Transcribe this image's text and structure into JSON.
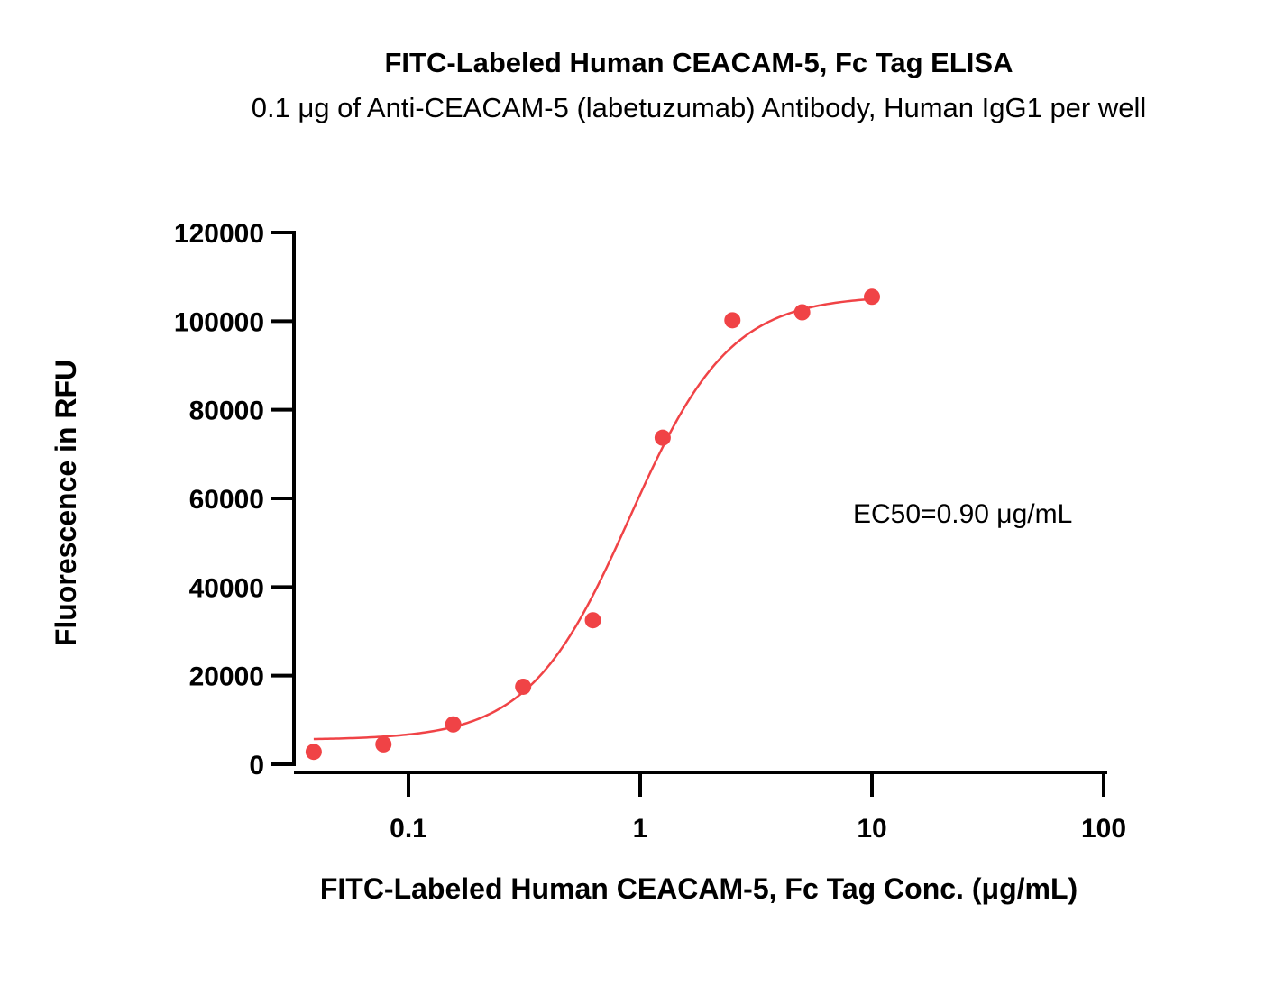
{
  "chart_data": {
    "type": "scatter",
    "title": "FITC-Labeled Human CEACAM-5, Fc Tag ELISA",
    "subtitle": "0.1 μg of Anti-CEACAM-5 (labetuzumab) Antibody, Human IgG1 per well",
    "xlabel": "FITC-Labeled Human CEACAM-5, Fc Tag Conc. (μg/mL)",
    "ylabel": "Fluorescence in RFU",
    "xscale": "log",
    "xlim": [
      0.03,
      100
    ],
    "ylim": [
      0,
      120000
    ],
    "x_ticks": [
      0.1,
      1,
      10,
      100
    ],
    "x_tick_labels": [
      "0.1",
      "1",
      "10",
      "100"
    ],
    "y_ticks": [
      0,
      20000,
      40000,
      60000,
      80000,
      100000,
      120000
    ],
    "y_tick_labels": [
      "0",
      "20000",
      "40000",
      "60000",
      "80000",
      "100000",
      "120000"
    ],
    "grid": false,
    "color": "#f04346",
    "annotation": "EC50=0.90 μg/mL",
    "series": [
      {
        "x": [
          0.039,
          0.078,
          0.156,
          0.3125,
          0.625,
          1.25,
          2.5,
          5,
          10
        ],
        "y": [
          2800,
          4500,
          9000,
          17500,
          32500,
          73700,
          100200,
          102000,
          105500
        ]
      }
    ],
    "fit": {
      "model": "4PL",
      "bottom": 5500,
      "top": 105800,
      "ec50": 0.9,
      "hill": 2.0
    }
  }
}
